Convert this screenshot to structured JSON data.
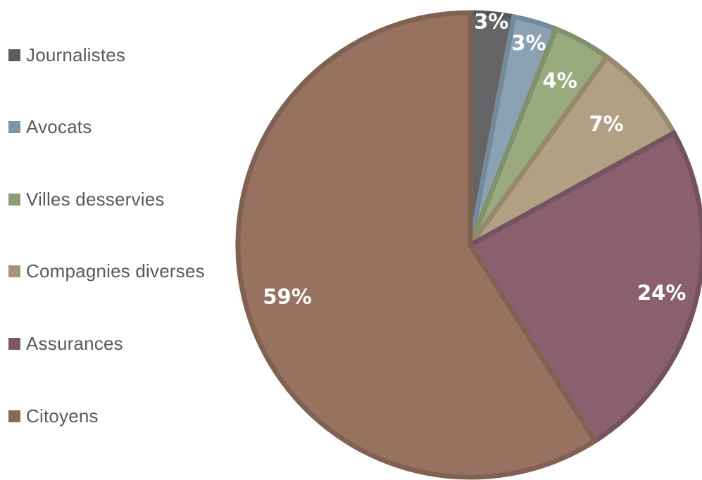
{
  "chart_data": {
    "type": "pie",
    "title": "",
    "legend_position": "left",
    "start_angle_deg": 0,
    "direction": "clockwise",
    "slices": [
      {
        "label": "Journalistes",
        "value": 3,
        "display": "3%",
        "color": "#646366"
      },
      {
        "label": "Avocats",
        "value": 3,
        "display": "3%",
        "color": "#8aa2b4"
      },
      {
        "label": "Villes desservies",
        "value": 4,
        "display": "4%",
        "color": "#98aa7e"
      },
      {
        "label": "Compagnies diverses",
        "value": 7,
        "display": "7%",
        "color": "#b2a084"
      },
      {
        "label": "Assurances",
        "value": 24,
        "display": "24%",
        "color": "#8a6070"
      },
      {
        "label": "Citoyens",
        "value": 59,
        "display": "59%",
        "color": "#987260"
      }
    ]
  }
}
